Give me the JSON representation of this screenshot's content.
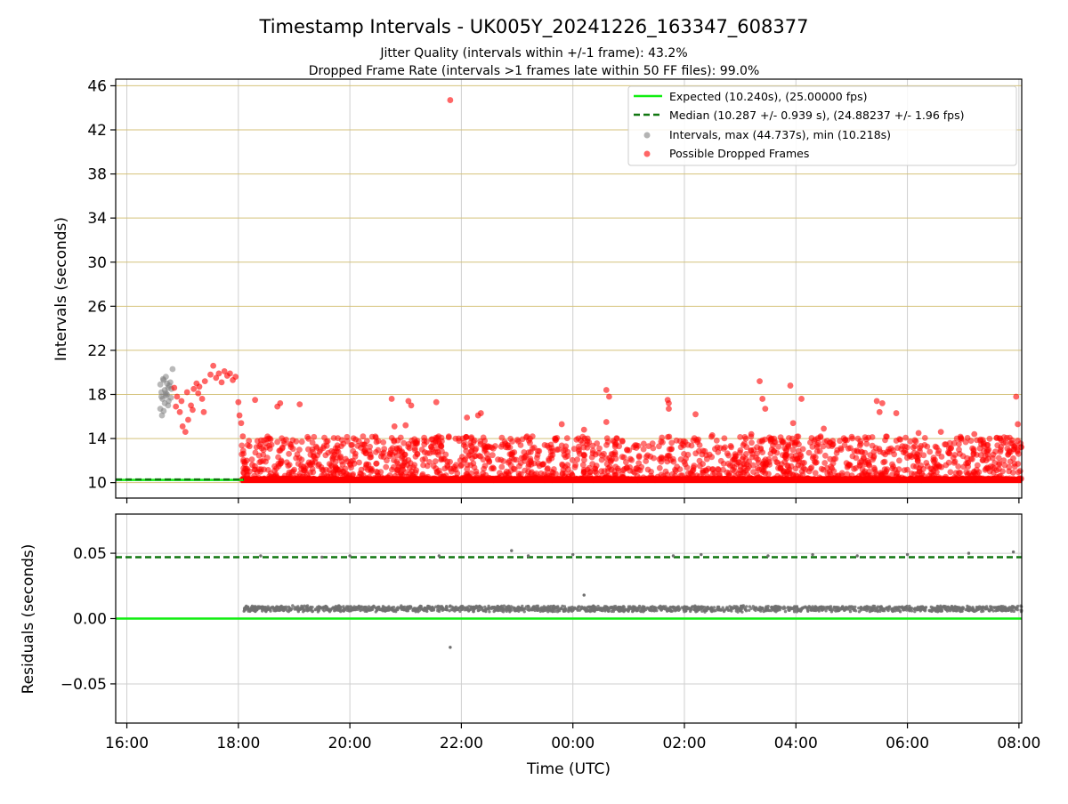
{
  "chart_data": [
    {
      "type": "scatter",
      "title": "Timestamp Intervals - UK005Y_20241226_163347_608377",
      "subtitle_lines": [
        "Jitter Quality (intervals within +/-1 frame): 43.2%",
        "Dropped Frame Rate (intervals >1 frames late within 50 FF files): 99.0%"
      ],
      "xlabel": "",
      "ylabel": "Intervals (seconds)",
      "x_unit": "hours since 16:00 UTC",
      "xlim": [
        -0.2,
        16.05
      ],
      "ylim": [
        8.6,
        46.6
      ],
      "yticks": [
        10,
        14,
        18,
        22,
        26,
        30,
        34,
        38,
        42,
        46
      ],
      "grid": true,
      "grid_color_y": "#d4c27a",
      "legend_position": "top-right",
      "series": [
        {
          "name": "Expected (10.240s), (25.00000 fps)",
          "kind": "hline",
          "y": 10.24,
          "color": "#11ee11",
          "style": "solid",
          "x_range": [
            -0.2,
            2.1
          ]
        },
        {
          "name": "Median (10.287 +/- 0.939 s), (24.88237 +/- 1.96 fps)",
          "kind": "hline",
          "y": 10.287,
          "color": "#117711",
          "style": "dashed",
          "x_range": [
            -0.2,
            2.1
          ]
        },
        {
          "name": "Intervals, max (44.737s), min (10.218s)",
          "kind": "scatter",
          "color": "#808080",
          "alpha": 0.55,
          "points": [
            [
              0.6,
              18.9
            ],
            [
              0.62,
              18.2
            ],
            [
              0.64,
              17.6
            ],
            [
              0.66,
              19.3
            ],
            [
              0.68,
              18.4
            ],
            [
              0.7,
              17.9
            ],
            [
              0.72,
              19.0
            ],
            [
              0.74,
              18.6
            ],
            [
              0.6,
              16.7
            ],
            [
              0.63,
              16.1
            ],
            [
              0.66,
              16.5
            ],
            [
              0.68,
              17.2
            ],
            [
              0.7,
              19.6
            ],
            [
              0.72,
              18.0
            ],
            [
              0.75,
              17.4
            ],
            [
              0.78,
              19.1
            ],
            [
              0.8,
              18.5
            ],
            [
              0.82,
              20.3
            ],
            [
              0.65,
              19.4
            ],
            [
              0.7,
              18.1
            ],
            [
              0.76,
              18.8
            ],
            [
              0.62,
              17.8
            ],
            [
              0.74,
              17.0
            ],
            [
              0.79,
              17.7
            ]
          ]
        },
        {
          "name": "Possible Dropped Frames",
          "kind": "scatter",
          "color": "#ff0000",
          "alpha": 0.6,
          "points": [
            [
              5.8,
              44.7
            ],
            [
              0.85,
              18.6
            ],
            [
              0.9,
              17.8
            ],
            [
              0.95,
              16.4
            ],
            [
              1.0,
              15.1
            ],
            [
              1.05,
              14.6
            ],
            [
              1.1,
              15.7
            ],
            [
              1.15,
              17.0
            ],
            [
              1.2,
              18.5
            ],
            [
              1.25,
              19.0
            ],
            [
              1.3,
              18.7
            ],
            [
              1.35,
              17.6
            ],
            [
              1.4,
              19.2
            ],
            [
              1.5,
              19.8
            ],
            [
              1.55,
              20.6
            ],
            [
              1.6,
              19.5
            ],
            [
              1.65,
              19.9
            ],
            [
              1.7,
              19.1
            ],
            [
              1.75,
              20.1
            ],
            [
              1.8,
              19.7
            ],
            [
              1.85,
              19.9
            ],
            [
              1.9,
              19.3
            ],
            [
              1.95,
              19.6
            ],
            [
              2.0,
              17.3
            ],
            [
              2.02,
              16.1
            ],
            [
              2.05,
              15.4
            ],
            [
              2.08,
              14.2
            ],
            [
              0.88,
              16.9
            ],
            [
              0.98,
              17.4
            ],
            [
              1.08,
              18.2
            ],
            [
              1.18,
              16.6
            ],
            [
              1.28,
              18.1
            ],
            [
              1.38,
              16.4
            ],
            [
              2.3,
              17.5
            ],
            [
              2.7,
              16.9
            ],
            [
              2.75,
              17.2
            ],
            [
              3.1,
              17.1
            ],
            [
              4.75,
              17.6
            ],
            [
              5.05,
              17.4
            ],
            [
              5.1,
              17.0
            ],
            [
              5.55,
              17.3
            ],
            [
              6.3,
              16.1
            ],
            [
              6.35,
              16.3
            ],
            [
              6.1,
              15.9
            ],
            [
              8.6,
              18.4
            ],
            [
              8.65,
              17.8
            ],
            [
              8.6,
              15.5
            ],
            [
              9.7,
              17.5
            ],
            [
              9.72,
              17.2
            ],
            [
              9.72,
              16.7
            ],
            [
              10.2,
              16.2
            ],
            [
              11.35,
              19.2
            ],
            [
              11.4,
              17.6
            ],
            [
              11.45,
              16.7
            ],
            [
              11.9,
              18.8
            ],
            [
              11.95,
              15.4
            ],
            [
              12.1,
              17.6
            ],
            [
              13.45,
              17.4
            ],
            [
              13.5,
              16.4
            ],
            [
              13.55,
              17.2
            ],
            [
              13.8,
              16.3
            ],
            [
              15.95,
              17.8
            ],
            [
              15.98,
              15.3
            ],
            [
              15.98,
              13.8
            ],
            [
              4.8,
              15.1
            ],
            [
              5.0,
              15.2
            ],
            [
              7.8,
              15.3
            ],
            [
              8.2,
              14.8
            ],
            [
              10.5,
              14.3
            ],
            [
              11.2,
              14.4
            ],
            [
              12.5,
              14.9
            ],
            [
              14.2,
              14.5
            ],
            [
              14.6,
              14.6
            ],
            [
              15.2,
              14.4
            ],
            [
              2.15,
              12.0
            ],
            [
              2.2,
              13.3
            ],
            [
              2.25,
              11.6
            ]
          ]
        }
      ],
      "dense_band": {
        "color": "#ff0000",
        "x_range": [
          2.05,
          16.05
        ],
        "y_min": 10.24,
        "y_max": 14.2,
        "note_levels": [
          10.24,
          11.26,
          12.28,
          13.3,
          14.32
        ]
      }
    },
    {
      "type": "scatter",
      "title": "",
      "xlabel": "Time (UTC)",
      "ylabel": "Residuals (seconds)",
      "x_unit": "hours since 16:00 UTC",
      "xlim": [
        -0.2,
        16.05
      ],
      "ylim": [
        -0.08,
        0.08
      ],
      "yticks": [
        -0.05,
        0.0,
        0.05
      ],
      "ytick_labels": [
        "−0.05",
        "0.00",
        "0.05"
      ],
      "xticks": [
        0,
        2,
        4,
        6,
        8,
        10,
        12,
        14,
        16
      ],
      "xtick_labels": [
        "16:00",
        "18:00",
        "20:00",
        "22:00",
        "00:00",
        "02:00",
        "04:00",
        "06:00",
        "08:00"
      ],
      "grid": true,
      "series": [
        {
          "kind": "hline",
          "y": 0.0,
          "color": "#11ee11",
          "style": "solid"
        },
        {
          "kind": "hline",
          "y": 0.047,
          "color": "#117711",
          "style": "dashed"
        },
        {
          "kind": "scatter",
          "color": "#707070",
          "band": {
            "x_range": [
              2.1,
              16.05
            ],
            "center": 0.0075,
            "spread": 0.0025
          },
          "upper_points": [
            [
              2.4,
              0.048
            ],
            [
              3.5,
              0.047
            ],
            [
              4.0,
              0.048
            ],
            [
              4.9,
              0.047
            ],
            [
              5.6,
              0.048
            ],
            [
              6.9,
              0.052
            ],
            [
              7.2,
              0.048
            ],
            [
              8.0,
              0.049
            ],
            [
              9.8,
              0.048
            ],
            [
              10.3,
              0.049
            ],
            [
              11.5,
              0.048
            ],
            [
              12.3,
              0.049
            ],
            [
              13.1,
              0.048
            ],
            [
              14.0,
              0.049
            ],
            [
              15.1,
              0.05
            ],
            [
              15.9,
              0.051
            ]
          ],
          "outliers": [
            [
              5.8,
              -0.022
            ],
            [
              8.2,
              0.018
            ]
          ]
        }
      ]
    }
  ]
}
